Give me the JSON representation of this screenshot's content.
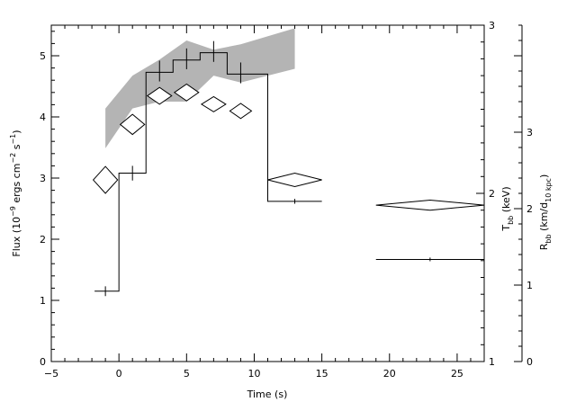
{
  "chart_data": {
    "type": "line",
    "xlabel": "Time (s)",
    "ylabel_left": [
      "Flux (10",
      "−9",
      " ergs cm",
      "−2",
      " s",
      "−1",
      ")"
    ],
    "ylabel_right_inner": [
      "T",
      "bb",
      " (keV)"
    ],
    "ylabel_right_outer": [
      "R",
      "bb",
      " (km/d",
      "10 kpc",
      ")"
    ],
    "xlim": [
      -5,
      27
    ],
    "ylim_flux": [
      0,
      5.5
    ],
    "ylim_kT": [
      1,
      3
    ],
    "ylim_R": [
      0,
      4.4
    ],
    "x_ticks": [
      -5,
      0,
      5,
      10,
      15,
      20,
      25
    ],
    "y_ticks_flux": [
      0,
      1,
      2,
      3,
      4,
      5
    ],
    "y_ticks_kT": [
      1,
      2,
      3
    ],
    "y_ticks_R": [
      0,
      1,
      2,
      3
    ],
    "flux_histogram": [
      {
        "t0": -1.8,
        "t1": 0,
        "flux": 1.15
      },
      {
        "t0": 0,
        "t1": 2,
        "flux": 3.08
      },
      {
        "t0": 2,
        "t1": 4,
        "flux": 4.73
      },
      {
        "t0": 4,
        "t1": 6,
        "flux": 4.93
      },
      {
        "t0": 6,
        "t1": 8,
        "flux": 5.05
      },
      {
        "t0": 8,
        "t1": 11,
        "flux": 4.7
      },
      {
        "t0": 11,
        "t1": 15,
        "flux": 2.62
      }
    ],
    "flux_late": {
      "t0": 19,
      "t1": 27,
      "flux": 1.67
    },
    "flux_errors": [
      {
        "t": -1,
        "flux": 1.15,
        "err": 0.08
      },
      {
        "t": 1,
        "flux": 3.08,
        "err": 0.12
      },
      {
        "t": 3,
        "flux": 4.75,
        "err": 0.17
      },
      {
        "t": 5,
        "flux": 4.95,
        "err": 0.17
      },
      {
        "t": 7,
        "flux": 5.07,
        "err": 0.17
      },
      {
        "t": 9,
        "flux": 4.72,
        "err": 0.17
      },
      {
        "t": 13,
        "flux": 2.62,
        "err": 0.04
      },
      {
        "t": 23,
        "flux": 1.67,
        "err": 0.03
      }
    ],
    "kT_diamonds": [
      {
        "t": -1,
        "dt": 0.9,
        "kT": 2.08,
        "dkT": 0.08
      },
      {
        "t": 1,
        "dt": 0.9,
        "kT": 2.41,
        "dkT": 0.06
      },
      {
        "t": 3,
        "dt": 0.9,
        "kT": 2.58,
        "dkT": 0.05
      },
      {
        "t": 5,
        "dt": 0.9,
        "kT": 2.6,
        "dkT": 0.05
      },
      {
        "t": 7,
        "dt": 0.9,
        "kT": 2.53,
        "dkT": 0.045
      },
      {
        "t": 9,
        "dt": 0.8,
        "kT": 2.49,
        "dkT": 0.045
      },
      {
        "t": 13,
        "dt": 2.0,
        "kT": 2.08,
        "dkT": 0.04
      },
      {
        "t": 23,
        "dt": 4.0,
        "kT": 1.93,
        "dkT": 0.03
      }
    ],
    "R_band": {
      "x": [
        -1,
        1,
        3,
        5,
        7,
        9,
        13
      ],
      "upper": [
        3.31,
        3.74,
        3.95,
        4.2,
        4.08,
        4.15,
        4.36
      ],
      "lower": [
        2.79,
        3.31,
        3.4,
        3.4,
        3.74,
        3.65,
        3.83
      ]
    }
  }
}
